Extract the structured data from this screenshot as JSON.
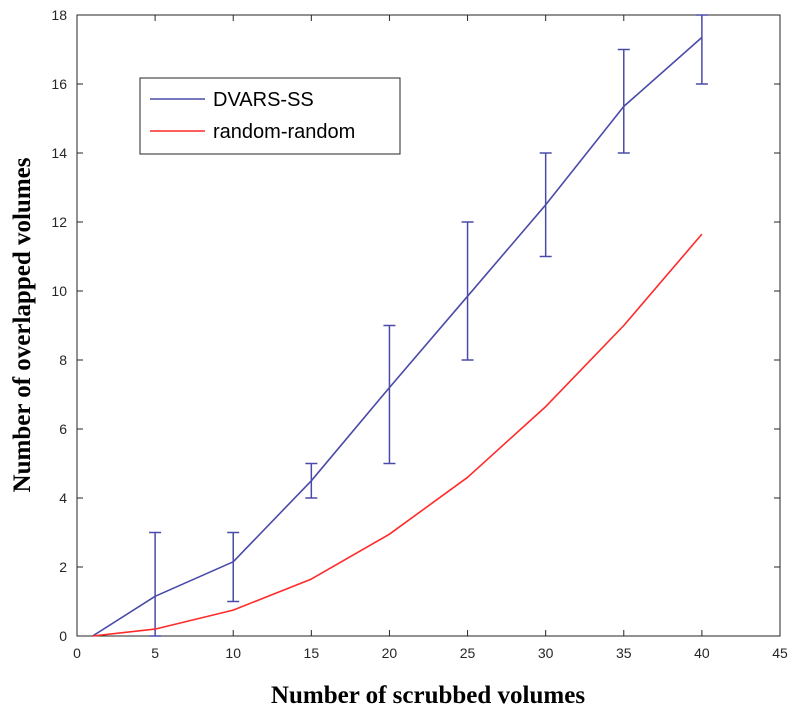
{
  "chart_data": {
    "type": "line",
    "title": "",
    "xlabel": "Number of scrubbed volumes",
    "ylabel": "Number of overlapped volumes",
    "xlim": [
      0,
      45
    ],
    "ylim": [
      0,
      18
    ],
    "x_ticks": [
      0,
      5,
      10,
      15,
      20,
      25,
      30,
      35,
      40,
      45
    ],
    "y_ticks": [
      0,
      2,
      4,
      6,
      8,
      10,
      12,
      14,
      16,
      18
    ],
    "grid": false,
    "legend_position": "top-left",
    "series": [
      {
        "name": "DVARS-SS",
        "color": "#4a4aa8",
        "x": [
          1,
          5,
          10,
          15,
          20,
          25,
          30,
          35,
          40
        ],
        "y": [
          0,
          1.15,
          2.15,
          4.5,
          7.2,
          9.85,
          12.5,
          15.35,
          17.35
        ],
        "error_low": [
          null,
          0,
          1,
          4,
          5,
          8,
          11,
          14,
          16
        ],
        "error_high": [
          null,
          3,
          3,
          5,
          9,
          12,
          14,
          17,
          18
        ]
      },
      {
        "name": "random-random",
        "color": "#ff2a2a",
        "x": [
          1,
          5,
          10,
          15,
          20,
          25,
          30,
          35,
          40
        ],
        "y": [
          0,
          0.2,
          0.75,
          1.65,
          2.95,
          4.6,
          6.65,
          9.0,
          11.65
        ]
      }
    ]
  }
}
